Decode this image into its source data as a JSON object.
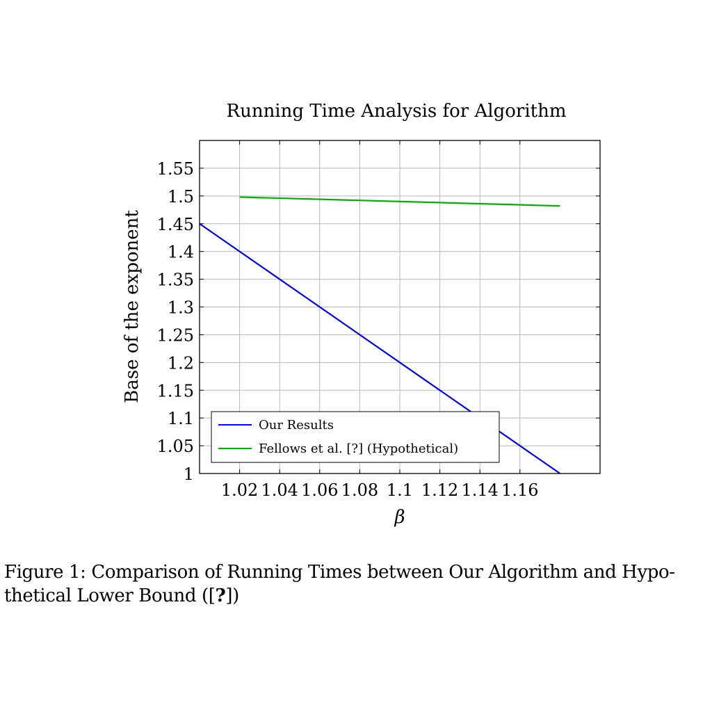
{
  "chart_data": {
    "type": "line",
    "title": "Running Time Analysis for Algorithm",
    "xlabel": "β",
    "ylabel": "Base of the exponent",
    "xlim": [
      1.0,
      1.2
    ],
    "ylim": [
      1.0,
      1.6
    ],
    "xticks": [
      1.02,
      1.04,
      1.06,
      1.08,
      1.1,
      1.12,
      1.14,
      1.16
    ],
    "xtick_labels": [
      "1.02",
      "1.04",
      "1.06",
      "1.08",
      "1.1",
      "1.12",
      "1.14",
      "1.16"
    ],
    "yticks": [
      1.0,
      1.05,
      1.1,
      1.15,
      1.2,
      1.25,
      1.3,
      1.35,
      1.4,
      1.45,
      1.5,
      1.55
    ],
    "ytick_labels": [
      "1",
      "1.05",
      "1.1",
      "1.15",
      "1.2",
      "1.25",
      "1.3",
      "1.35",
      "1.4",
      "1.45",
      "1.5",
      "1.55"
    ],
    "grid": true,
    "legend_position": "bottom-left",
    "series": [
      {
        "name": "Our Results",
        "color": "#0000ff",
        "x": [
          1.0,
          1.18
        ],
        "y": [
          1.45,
          1.0
        ]
      },
      {
        "name": "Fellows et al. [?] (Hypothetical)",
        "color": "#00b000",
        "x": [
          1.02,
          1.18
        ],
        "y": [
          1.498,
          1.482
        ]
      }
    ]
  },
  "caption": {
    "line1": "Figure 1:  Comparison of Running Times between Our Algorithm and Hypo-",
    "line2_pre": "thetical Lower Bound ([",
    "line2_bold": "?",
    "line2_post": "])"
  }
}
